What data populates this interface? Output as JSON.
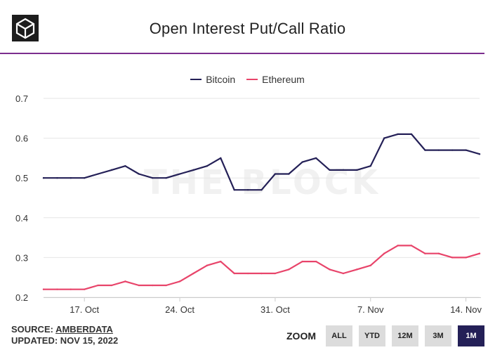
{
  "header": {
    "title": "Open Interest Put/Call Ratio",
    "rule_color": "#7b2e8e",
    "logo_icon": "cube-logo-icon"
  },
  "watermark": "THE BLOCK",
  "legend": [
    {
      "label": "Bitcoin",
      "color": "#242057"
    },
    {
      "label": "Ethereum",
      "color": "#e8446a"
    }
  ],
  "footer": {
    "source_prefix": "SOURCE:",
    "source_name": "AMBERDATA",
    "updated": "UPDATED: NOV 15, 2022"
  },
  "zoom": {
    "label": "ZOOM",
    "buttons": [
      "ALL",
      "YTD",
      "12M",
      "3M",
      "1M"
    ],
    "active": "1M"
  },
  "chart_data": {
    "type": "line",
    "title": "Open Interest Put/Call Ratio",
    "xlabel": "",
    "ylabel": "",
    "x": [
      "Oct 14",
      "Oct 15",
      "Oct 16",
      "Oct 17",
      "Oct 18",
      "Oct 19",
      "Oct 20",
      "Oct 21",
      "Oct 22",
      "Oct 23",
      "Oct 24",
      "Oct 25",
      "Oct 26",
      "Oct 27",
      "Oct 28",
      "Oct 29",
      "Oct 30",
      "Oct 31",
      "Nov 1",
      "Nov 2",
      "Nov 3",
      "Nov 4",
      "Nov 5",
      "Nov 6",
      "Nov 7",
      "Nov 8",
      "Nov 9",
      "Nov 10",
      "Nov 11",
      "Nov 12",
      "Nov 13",
      "Nov 14",
      "Nov 15"
    ],
    "x_ticks": [
      "17. Oct",
      "24. Oct",
      "31. Oct",
      "7. Nov",
      "14. Nov"
    ],
    "x_tick_dates": [
      "Oct 17",
      "Oct 24",
      "Oct 31",
      "Nov 7",
      "Nov 14"
    ],
    "y_ticks": [
      "0.2",
      "0.3",
      "0.4",
      "0.5",
      "0.6",
      "0.7"
    ],
    "ylim": [
      0.2,
      0.7
    ],
    "grid": "horizontal",
    "legend_position": "top",
    "series": [
      {
        "name": "Bitcoin",
        "color": "#242057",
        "values": [
          0.5,
          0.5,
          0.5,
          0.5,
          0.51,
          0.52,
          0.53,
          0.51,
          0.5,
          0.5,
          0.51,
          0.52,
          0.53,
          0.55,
          0.47,
          0.47,
          0.47,
          0.51,
          0.51,
          0.54,
          0.55,
          0.52,
          0.52,
          0.52,
          0.53,
          0.6,
          0.61,
          0.61,
          0.57,
          0.57,
          0.57,
          0.57,
          0.56
        ]
      },
      {
        "name": "Ethereum",
        "color": "#e8446a",
        "values": [
          0.22,
          0.22,
          0.22,
          0.22,
          0.23,
          0.23,
          0.24,
          0.23,
          0.23,
          0.23,
          0.24,
          0.26,
          0.28,
          0.29,
          0.26,
          0.26,
          0.26,
          0.26,
          0.27,
          0.29,
          0.29,
          0.27,
          0.26,
          0.27,
          0.28,
          0.31,
          0.33,
          0.33,
          0.31,
          0.31,
          0.3,
          0.3,
          0.31
        ]
      }
    ]
  }
}
